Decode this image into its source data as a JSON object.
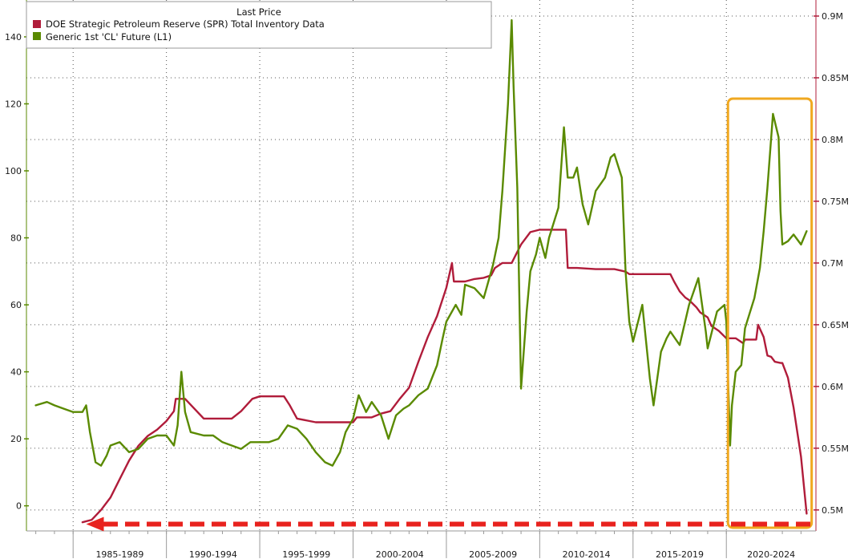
{
  "chart_data": {
    "type": "line",
    "title": "",
    "legend": {
      "title": "Last Price",
      "placement": "top-left",
      "entries": [
        {
          "label": "DOE Strategic Petroleum Reserve (SPR) Total Inventory Data",
          "color": "#b01c3a"
        },
        {
          "label": "Generic 1st 'CL' Future  (L1)",
          "color": "#5a8a00"
        }
      ]
    },
    "x_domain": [
      1982.5,
      2024.8
    ],
    "x_periods": [
      "1985-1989",
      "1990-1994",
      "1995-1999",
      "2000-2004",
      "2005-2009",
      "2010-2014",
      "2015-2019",
      "2020-2024"
    ],
    "x_period_boundaries": [
      1985,
      1990,
      1995,
      2000,
      2005,
      2010,
      2015,
      2020,
      2025
    ],
    "left_axis": {
      "ticks": [
        0,
        20,
        40,
        60,
        80,
        100,
        120,
        140
      ],
      "labels": [
        "0",
        "20",
        "40",
        "60",
        "80",
        "100",
        "120",
        "140"
      ],
      "ylim": [
        -7.5,
        151
      ]
    },
    "right_axis": {
      "ticks": [
        0.5,
        0.55,
        0.6,
        0.65,
        0.7,
        0.75,
        0.8,
        0.85,
        0.9
      ],
      "labels": [
        "0.5M",
        "0.55M",
        "0.6M",
        "0.65M",
        "0.7M",
        "0.75M",
        "0.8M",
        "0.85M",
        "0.9M"
      ],
      "ylim": [
        0.483,
        0.913
      ]
    },
    "grid": true,
    "series": [
      {
        "name": "DOE Strategic Petroleum Reserve (SPR) Total Inventory Data",
        "axis": "right",
        "color": "#b01c3a",
        "x": [
          1985.5,
          1986.0,
          1986.5,
          1987.0,
          1987.5,
          1988.0,
          1988.5,
          1989.0,
          1989.5,
          1990.0,
          1990.4,
          1990.5,
          1990.8,
          1991.0,
          1992.0,
          1992.5,
          1993.0,
          1993.5,
          1994.0,
          1994.6,
          1995.0,
          1995.7,
          1996.0,
          1996.3,
          1996.6,
          1997.0,
          1998.0,
          1999.0,
          1999.6,
          1999.9,
          2000.0,
          2000.2,
          2000.6,
          2000.9,
          2001.0,
          2001.5,
          2002.0,
          2002.5,
          2003.0,
          2003.5,
          2004.0,
          2004.5,
          2005.0,
          2005.3,
          2005.4,
          2005.8,
          2006.0,
          2006.5,
          2007.0,
          2007.4,
          2007.6,
          2008.0,
          2008.5,
          2009.0,
          2009.5,
          2010.0,
          2010.5,
          2011.0,
          2011.4,
          2011.5,
          2012.0,
          2013.0,
          2013.5,
          2014.0,
          2014.6,
          2014.8,
          2015.0,
          2015.5,
          2016.0,
          2016.7,
          2017.0,
          2017.2,
          2017.5,
          2017.8,
          2018.0,
          2018.4,
          2018.6,
          2019.0,
          2019.2,
          2019.6,
          2020.0,
          2020.5,
          2020.9,
          2021.0,
          2021.3,
          2021.6,
          2021.7,
          2022.0,
          2022.2,
          2022.4,
          2022.6,
          2022.9,
          2023.0,
          2023.3,
          2023.6,
          2024.0,
          2024.3
        ],
        "y": [
          0.49,
          0.492,
          0.5,
          0.51,
          0.525,
          0.54,
          0.552,
          0.56,
          0.565,
          0.572,
          0.58,
          0.59,
          0.59,
          0.59,
          0.574,
          0.574,
          0.574,
          0.574,
          0.58,
          0.59,
          0.592,
          0.592,
          0.592,
          0.592,
          0.585,
          0.574,
          0.571,
          0.571,
          0.571,
          0.571,
          0.571,
          0.575,
          0.575,
          0.575,
          0.575,
          0.578,
          0.58,
          0.59,
          0.599,
          0.62,
          0.64,
          0.657,
          0.68,
          0.7,
          0.685,
          0.685,
          0.685,
          0.687,
          0.688,
          0.69,
          0.696,
          0.7,
          0.7,
          0.715,
          0.725,
          0.727,
          0.727,
          0.727,
          0.727,
          0.696,
          0.696,
          0.695,
          0.695,
          0.695,
          0.693,
          0.691,
          0.691,
          0.691,
          0.691,
          0.691,
          0.691,
          0.685,
          0.677,
          0.672,
          0.67,
          0.664,
          0.66,
          0.656,
          0.649,
          0.645,
          0.639,
          0.639,
          0.635,
          0.638,
          0.638,
          0.638,
          0.65,
          0.64,
          0.625,
          0.624,
          0.62,
          0.619,
          0.619,
          0.607,
          0.583,
          0.543,
          0.497
        ]
      },
      {
        "name": "Generic 1st 'CL' Future  (L1)",
        "axis": "left",
        "color": "#5a8a00",
        "x": [
          1983.0,
          1983.6,
          1984.0,
          1984.5,
          1985.0,
          1985.5,
          1985.7,
          1985.9,
          1986.2,
          1986.5,
          1986.8,
          1987.0,
          1987.5,
          1988.0,
          1988.5,
          1989.0,
          1989.5,
          1990.0,
          1990.4,
          1990.6,
          1990.8,
          1991.0,
          1991.3,
          1992.0,
          1992.5,
          1993.0,
          1993.5,
          1994.0,
          1994.5,
          1995.0,
          1995.5,
          1996.0,
          1996.5,
          1997.0,
          1997.5,
          1998.0,
          1998.5,
          1998.9,
          1999.3,
          1999.6,
          2000.0,
          2000.3,
          2000.7,
          2001.0,
          2001.5,
          2001.9,
          2002.3,
          2002.7,
          2003.0,
          2003.5,
          2004.0,
          2004.5,
          2004.8,
          2005.0,
          2005.5,
          2005.8,
          2006.0,
          2006.5,
          2007.0,
          2007.5,
          2007.8,
          2008.0,
          2008.3,
          2008.5,
          2008.6,
          2008.8,
          2009.0,
          2009.3,
          2009.5,
          2009.8,
          2010.0,
          2010.3,
          2010.5,
          2011.0,
          2011.3,
          2011.5,
          2011.8,
          2012.0,
          2012.3,
          2012.6,
          2013.0,
          2013.5,
          2013.8,
          2014.0,
          2014.4,
          2014.6,
          2014.8,
          2015.0,
          2015.5,
          2015.9,
          2016.1,
          2016.5,
          2016.8,
          2017.0,
          2017.5,
          2018.0,
          2018.5,
          2018.9,
          2019.0,
          2019.5,
          2019.9,
          2020.0,
          2020.2,
          2020.3,
          2020.5,
          2020.8,
          2021.0,
          2021.5,
          2021.8,
          2022.0,
          2022.2,
          2022.5,
          2022.8,
          2022.9,
          2023.0,
          2023.3,
          2023.6,
          2024.0,
          2024.3
        ],
        "y": [
          30,
          31,
          30,
          29,
          28,
          28,
          30,
          22,
          13,
          12,
          15,
          18,
          19,
          16,
          17,
          20,
          21,
          21,
          18,
          24,
          40,
          28,
          22,
          21,
          21,
          19,
          18,
          17,
          19,
          19,
          19,
          20,
          24,
          23,
          20,
          16,
          13,
          12,
          16,
          22,
          26,
          33,
          28,
          31,
          27,
          20,
          27,
          29,
          30,
          33,
          35,
          42,
          50,
          55,
          60,
          57,
          66,
          65,
          62,
          72,
          80,
          94,
          120,
          145,
          125,
          95,
          35,
          58,
          70,
          75,
          80,
          74,
          80,
          89,
          113,
          98,
          98,
          101,
          90,
          84,
          94,
          98,
          104,
          105,
          98,
          70,
          55,
          49,
          60,
          38,
          30,
          46,
          50,
          52,
          48,
          60,
          68,
          52,
          47,
          58,
          60,
          55,
          18,
          30,
          40,
          42,
          53,
          62,
          71,
          82,
          95,
          117,
          110,
          88,
          78,
          79,
          81,
          78,
          82
        ]
      }
    ],
    "annotations": [
      {
        "type": "highlight-box",
        "color": "#f0a820",
        "x_from": 2020.0,
        "x_to": 2025.0
      },
      {
        "type": "dashed-arrow",
        "color": "#e8221e",
        "direction": "left",
        "y_right_axis": 0.4885,
        "x_from": 2024.5,
        "x_to": 1985.7
      }
    ]
  }
}
